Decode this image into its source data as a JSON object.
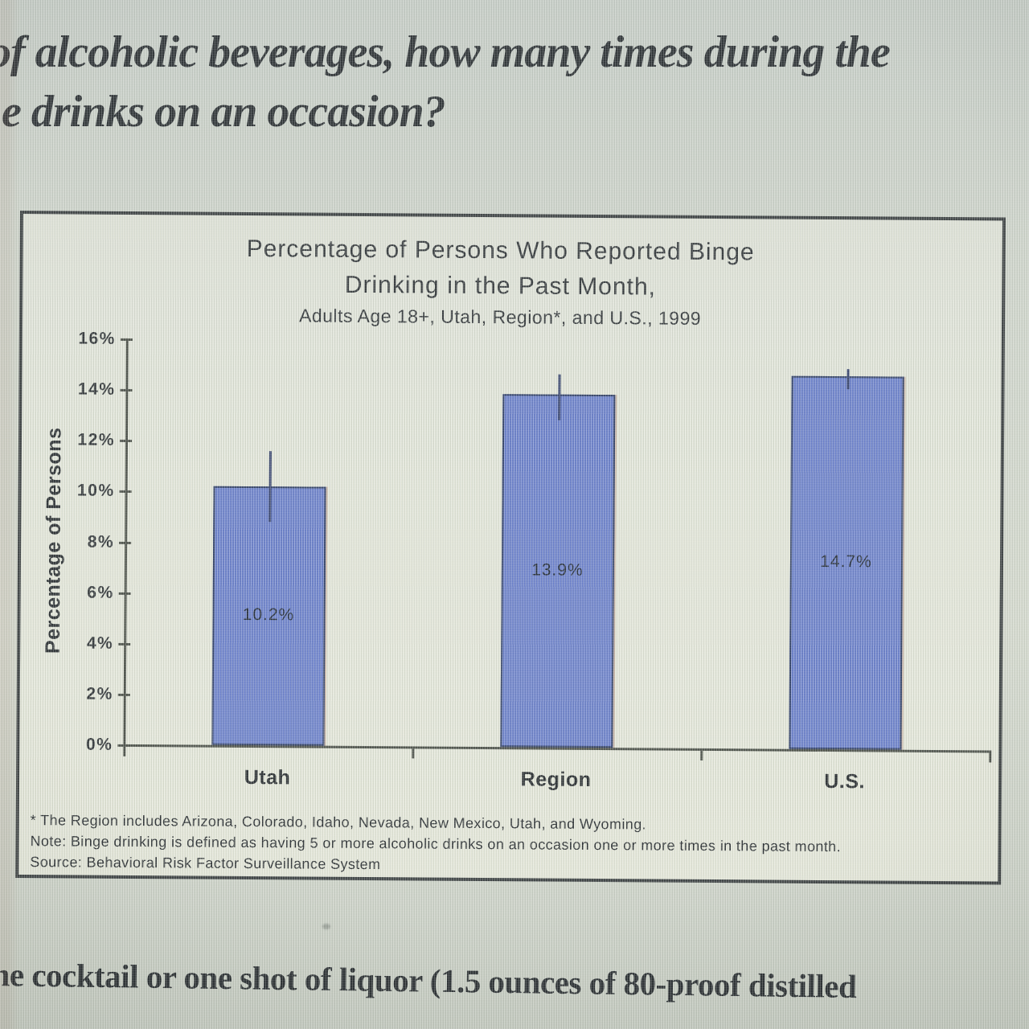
{
  "page_text": {
    "heading_line1": "of alcoholic beverages, how many times during the",
    "heading_line2": "e drinks on an occasion?",
    "bottom_line": "ne cocktail or one shot of liquor (1.5 ounces of 80-proof distilled"
  },
  "chart_data": {
    "type": "bar",
    "title_lines": [
      "Percentage of Persons Who Reported Binge",
      "Drinking in the Past Month,"
    ],
    "subtitle": "Adults Age 18+, Utah, Region*, and U.S., 1999",
    "ylabel": "Percentage of Persons",
    "xlabel": "",
    "ylim": [
      0,
      16
    ],
    "ytick_labels": [
      "0%",
      "2%",
      "4%",
      "6%",
      "8%",
      "10%",
      "12%",
      "14%",
      "16%"
    ],
    "grid": false,
    "legend": "none",
    "categories": [
      "Utah",
      "Region",
      "U.S."
    ],
    "values": [
      10.2,
      13.9,
      14.7
    ],
    "data_labels": [
      "10.2%",
      "13.9%",
      "14.7%"
    ],
    "error_bars": [
      {
        "low": 8.8,
        "high": 11.6
      },
      {
        "low": 12.9,
        "high": 14.7
      },
      {
        "low": 14.2,
        "high": 15.0
      }
    ],
    "colors": {
      "bar_fill": "#6379c6",
      "bar_border": "#2e3d63",
      "error_bar": "#33406a",
      "axis": "#474c44"
    },
    "footnotes": [
      "* The Region includes Arizona, Colorado, Idaho, Nevada, New Mexico, Utah, and Wyoming.",
      "Note: Binge drinking is defined as having 5 or more alcoholic drinks on an occasion one or more times in the past month.",
      "Source: Behavioral Risk Factor Surveillance System"
    ]
  }
}
